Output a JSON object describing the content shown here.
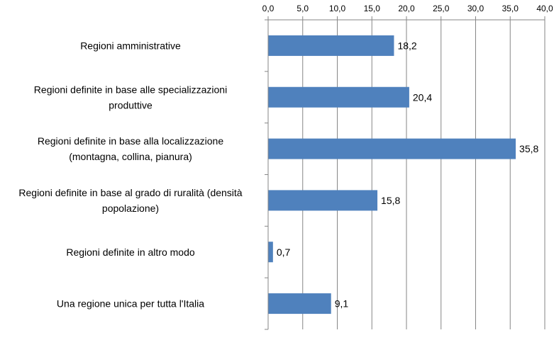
{
  "chart_data": {
    "type": "bar",
    "orientation": "horizontal",
    "title": "",
    "xlabel": "",
    "ylabel": "",
    "xlim": [
      0,
      40
    ],
    "x_ticks": [
      "0,0",
      "5,0",
      "10,0",
      "15,0",
      "20,0",
      "25,0",
      "30,0",
      "35,0",
      "40,0"
    ],
    "x_axis_position": "top",
    "grid": true,
    "legend": "none",
    "bar_color": "#4F81BD",
    "categories": [
      [
        "Regioni amministrative"
      ],
      [
        "Regioni definite in base alle specializzazioni",
        "produttive"
      ],
      [
        "Regioni definite in base alla localizzazione",
        "(montagna, collina, pianura)"
      ],
      [
        "Regioni definite in base al grado di ruralità (densità",
        "popolazione)"
      ],
      [
        "Regioni definite in altro modo"
      ],
      [
        "Una regione unica per tutta l'Italia"
      ]
    ],
    "values": [
      18.2,
      20.4,
      35.8,
      15.8,
      0.7,
      9.1
    ],
    "value_labels": [
      "18,2",
      "20,4",
      "35,8",
      "15,8",
      "0,7",
      "9,1"
    ]
  }
}
